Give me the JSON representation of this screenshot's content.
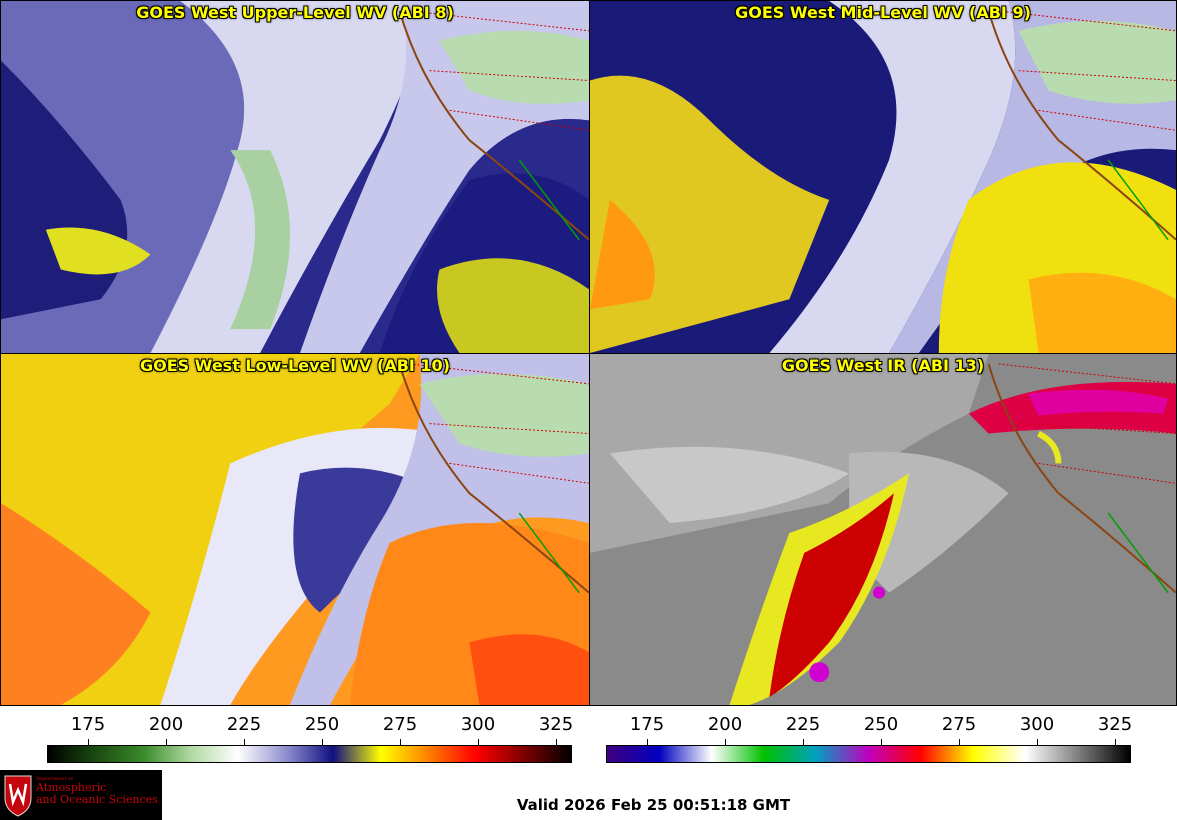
{
  "panels": {
    "upper": {
      "title": "GOES West Upper-Level WV (ABI 8)"
    },
    "mid": {
      "title": "GOES West Mid-Level WV (ABI 9)"
    },
    "low": {
      "title": "GOES West Low-Level WV (ABI 10)"
    },
    "ir": {
      "title": "GOES West IR (ABI 13)"
    }
  },
  "colorbar_wv": {
    "ticks": [
      "175",
      "200",
      "225",
      "250",
      "275",
      "300",
      "325"
    ],
    "colors": [
      "#000000",
      "#1a4a10",
      "#3a8a2a",
      "#b0d8a0",
      "#ffffff",
      "#9090d0",
      "#101080",
      "#ffff00",
      "#ff8000",
      "#ff0000",
      "#800000",
      "#000000"
    ]
  },
  "colorbar_ir": {
    "ticks": [
      "175",
      "200",
      "225",
      "250",
      "275",
      "300",
      "325"
    ],
    "colors": [
      "#400080",
      "#0000c0",
      "#ffffff",
      "#00c000",
      "#00a0c0",
      "#c000c0",
      "#ff0000",
      "#ffff00",
      "#ffffff",
      "#808080",
      "#000000"
    ]
  },
  "logo": {
    "small": "Department of",
    "line1": "Atmospheric",
    "line2": "and Oceanic Sciences"
  },
  "valid_text": "Valid 2026 Feb 25 00:51:18 GMT"
}
